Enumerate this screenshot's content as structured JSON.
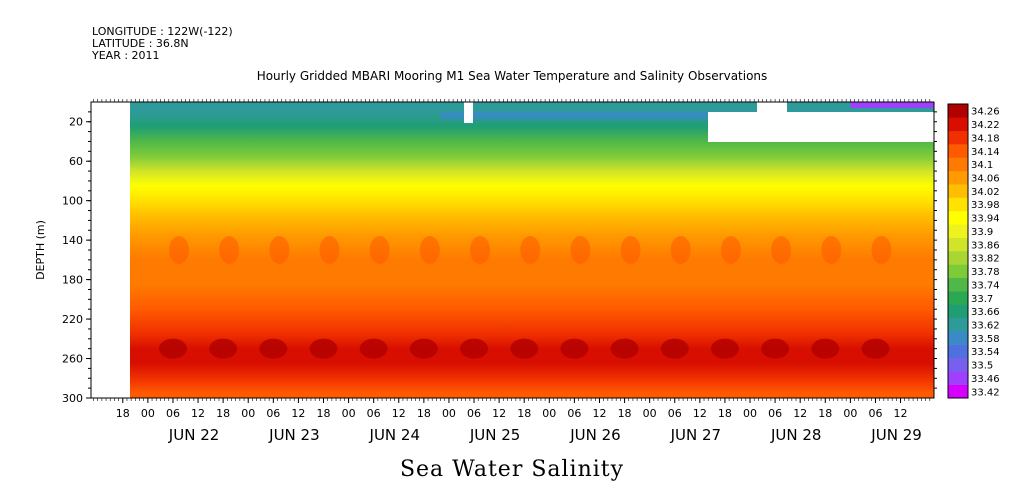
{
  "meta": {
    "longitude": "LONGITUDE : 122W(-122)",
    "latitude": "LATITUDE : 36.8N",
    "year": "YEAR : 2011"
  },
  "chart_data": {
    "type": "heatmap",
    "title": "Hourly Gridded MBARI Mooring M1 Sea Water Temperature and Salinity Observations",
    "ylabel": "DEPTH (m)",
    "xlabel": "Sea Water Salinity",
    "ylim": [
      300,
      0
    ],
    "xlim_hours": [
      0,
      180
    ],
    "y_ticks": [
      20,
      60,
      100,
      140,
      180,
      220,
      260,
      300
    ],
    "hour_ticks": [
      "18",
      "00",
      "06",
      "12",
      "18",
      "00",
      "06",
      "12",
      "18",
      "00",
      "06",
      "12",
      "18",
      "00",
      "06",
      "12",
      "18",
      "00",
      "06",
      "12",
      "18",
      "00",
      "06",
      "12",
      "18",
      "00",
      "06",
      "12",
      "18",
      "00",
      "06",
      "12"
    ],
    "date_labels": [
      {
        "label": "JUN 22",
        "hour": 12
      },
      {
        "label": "JUN 23",
        "hour": 36
      },
      {
        "label": "JUN 24",
        "hour": 60
      },
      {
        "label": "JUN 25",
        "hour": 84
      },
      {
        "label": "JUN 26",
        "hour": 108
      },
      {
        "label": "JUN 27",
        "hour": 132
      },
      {
        "label": "JUN 28",
        "hour": 156
      },
      {
        "label": "JUN 29",
        "hour": 180
      }
    ],
    "colorbar_levels": [
      "33.42",
      "33.46",
      "33.5",
      "33.54",
      "33.58",
      "33.62",
      "33.66",
      "33.7",
      "33.74",
      "33.78",
      "33.82",
      "33.86",
      "33.9",
      "33.94",
      "33.98",
      "34.02",
      "34.06",
      "34.1",
      "34.14",
      "34.18",
      "34.22",
      "34.26"
    ],
    "colorbar_colors": [
      "#d700ff",
      "#a040ff",
      "#7860ee",
      "#5070e0",
      "#3a8ac8",
      "#2f9a9a",
      "#1f9e73",
      "#2aa852",
      "#50b848",
      "#7ecb3a",
      "#aad633",
      "#d0e42a",
      "#eef21e",
      "#ffff00",
      "#ffe200",
      "#ffbf00",
      "#ff9a00",
      "#ff7a00",
      "#ff5a00",
      "#f03000",
      "#d80f00",
      "#b00000"
    ],
    "depth_profile": [
      {
        "depth": 10,
        "salinity": 33.64
      },
      {
        "depth": 25,
        "salinity": 33.66
      },
      {
        "depth": 40,
        "salinity": 33.74
      },
      {
        "depth": 55,
        "salinity": 33.8
      },
      {
        "depth": 70,
        "salinity": 33.88
      },
      {
        "depth": 85,
        "salinity": 33.94
      },
      {
        "depth": 100,
        "salinity": 33.98
      },
      {
        "depth": 115,
        "salinity": 34.02
      },
      {
        "depth": 135,
        "salinity": 34.08
      },
      {
        "depth": 160,
        "salinity": 34.12
      },
      {
        "depth": 185,
        "salinity": 34.12
      },
      {
        "depth": 210,
        "salinity": 34.16
      },
      {
        "depth": 235,
        "salinity": 34.2
      },
      {
        "depth": 250,
        "salinity": 34.24
      },
      {
        "depth": 265,
        "salinity": 34.22
      },
      {
        "depth": 280,
        "salinity": 34.18
      },
      {
        "depth": 295,
        "salinity": 34.14
      }
    ]
  }
}
